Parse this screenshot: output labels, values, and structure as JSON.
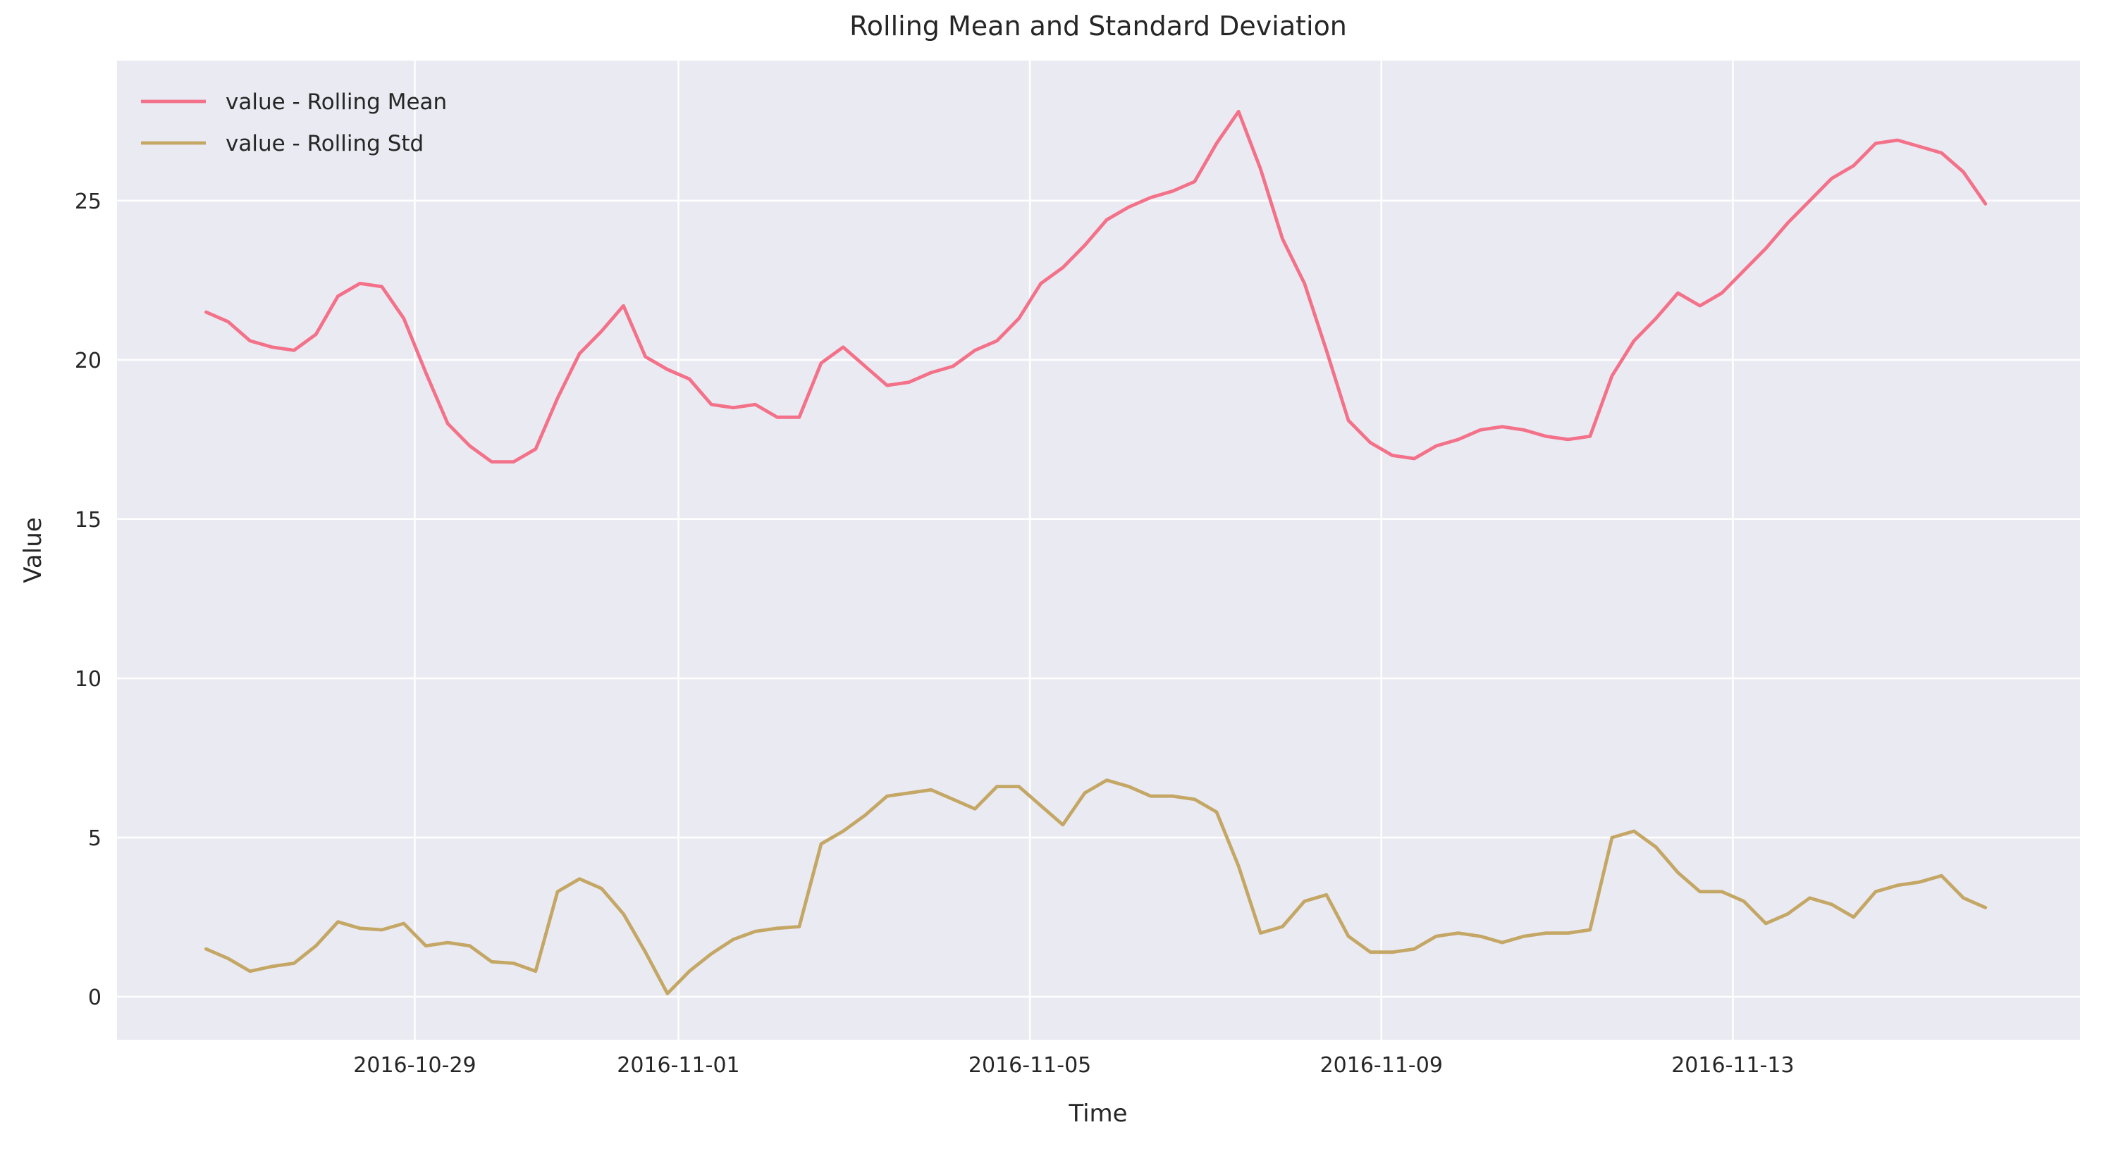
{
  "chart_data": {
    "type": "line",
    "title": "Rolling Mean and Standard Deviation",
    "x_label": "Time",
    "y_label": "Value",
    "x": [
      "2016-10-26 15:00",
      "2016-10-26 21:00",
      "2016-10-27 03:00",
      "2016-10-27 09:00",
      "2016-10-27 15:00",
      "2016-10-27 21:00",
      "2016-10-28 03:00",
      "2016-10-28 09:00",
      "2016-10-28 15:00",
      "2016-10-28 21:00",
      "2016-10-29 03:00",
      "2016-10-29 09:00",
      "2016-10-29 15:00",
      "2016-10-29 21:00",
      "2016-10-30 03:00",
      "2016-10-30 09:00",
      "2016-10-30 15:00",
      "2016-10-30 21:00",
      "2016-10-31 03:00",
      "2016-10-31 09:00",
      "2016-10-31 15:00",
      "2016-10-31 21:00",
      "2016-11-01 03:00",
      "2016-11-01 09:00",
      "2016-11-01 15:00",
      "2016-11-01 21:00",
      "2016-11-02 03:00",
      "2016-11-02 09:00",
      "2016-11-02 15:00",
      "2016-11-02 21:00",
      "2016-11-03 03:00",
      "2016-11-03 09:00",
      "2016-11-03 15:00",
      "2016-11-03 21:00",
      "2016-11-04 03:00",
      "2016-11-04 09:00",
      "2016-11-04 15:00",
      "2016-11-04 21:00",
      "2016-11-05 03:00",
      "2016-11-05 09:00",
      "2016-11-05 15:00",
      "2016-11-05 21:00",
      "2016-11-06 03:00",
      "2016-11-06 09:00",
      "2016-11-06 15:00",
      "2016-11-06 21:00",
      "2016-11-07 03:00",
      "2016-11-07 09:00",
      "2016-11-07 15:00",
      "2016-11-07 21:00",
      "2016-11-08 03:00",
      "2016-11-08 09:00",
      "2016-11-08 15:00",
      "2016-11-08 21:00",
      "2016-11-09 03:00",
      "2016-11-09 09:00",
      "2016-11-09 15:00",
      "2016-11-09 21:00",
      "2016-11-10 03:00",
      "2016-11-10 09:00",
      "2016-11-10 15:00",
      "2016-11-10 21:00",
      "2016-11-11 03:00",
      "2016-11-11 09:00",
      "2016-11-11 15:00",
      "2016-11-11 21:00",
      "2016-11-12 03:00",
      "2016-11-12 09:00",
      "2016-11-12 15:00",
      "2016-11-12 21:00",
      "2016-11-13 03:00",
      "2016-11-13 09:00",
      "2016-11-13 15:00",
      "2016-11-13 21:00",
      "2016-11-14 03:00",
      "2016-11-14 09:00",
      "2016-11-14 15:00",
      "2016-11-14 21:00",
      "2016-11-15 03:00",
      "2016-11-15 09:00",
      "2016-11-15 15:00",
      "2016-11-15 21:00"
    ],
    "series": [
      {
        "name": "value - Rolling Mean",
        "color": "#f37189",
        "values": [
          21.5,
          21.2,
          20.6,
          20.4,
          20.3,
          20.8,
          22.0,
          22.4,
          22.3,
          21.3,
          19.6,
          18.0,
          17.3,
          16.8,
          16.8,
          17.2,
          18.8,
          20.2,
          20.9,
          21.7,
          20.1,
          19.7,
          19.4,
          18.6,
          18.5,
          18.6,
          18.2,
          18.2,
          19.9,
          20.4,
          19.8,
          19.2,
          19.3,
          19.6,
          19.8,
          20.3,
          20.6,
          21.3,
          22.4,
          22.9,
          23.6,
          24.4,
          24.8,
          25.1,
          25.3,
          25.6,
          26.8,
          27.8,
          26.0,
          23.8,
          22.4,
          20.3,
          18.1,
          17.4,
          17.0,
          16.9,
          17.3,
          17.5,
          17.8,
          17.9,
          17.8,
          17.6,
          17.5,
          17.6,
          19.5,
          20.6,
          21.3,
          22.1,
          21.7,
          22.1,
          22.8,
          23.5,
          24.3,
          25.0,
          25.7,
          26.1,
          26.8,
          26.9,
          26.7,
          26.5,
          25.9,
          24.9
        ]
      },
      {
        "name": "value - Rolling Std",
        "color": "#c4a765",
        "values": [
          1.5,
          1.2,
          0.8,
          0.95,
          1.05,
          1.6,
          2.35,
          2.15,
          2.1,
          2.3,
          1.6,
          1.7,
          1.6,
          1.1,
          1.05,
          0.8,
          3.3,
          3.7,
          3.4,
          2.6,
          1.4,
          0.1,
          0.8,
          1.35,
          1.8,
          2.05,
          2.15,
          2.2,
          4.8,
          5.2,
          5.7,
          6.3,
          6.4,
          6.5,
          6.2,
          5.9,
          6.6,
          6.6,
          6.0,
          5.4,
          6.4,
          6.8,
          6.6,
          6.3,
          6.3,
          6.2,
          5.8,
          4.1,
          2.0,
          2.2,
          3.0,
          3.2,
          1.9,
          1.4,
          1.4,
          1.5,
          1.9,
          2.0,
          1.9,
          1.7,
          1.9,
          2.0,
          2.0,
          2.1,
          5.0,
          5.2,
          4.7,
          3.9,
          3.3,
          3.3,
          3.0,
          2.3,
          2.6,
          3.1,
          2.9,
          2.5,
          3.3,
          3.5,
          3.6,
          3.8,
          3.1,
          2.8
        ]
      }
    ],
    "xlim": [
      "2016-10-25 14:40",
      "2016-11-16 22:50"
    ],
    "xticks": [
      "2016-10-29",
      "2016-11-01",
      "2016-11-05",
      "2016-11-09",
      "2016-11-13"
    ],
    "ylim": [
      -1.35,
      29.4
    ],
    "yticks": [
      0,
      5,
      10,
      15,
      20,
      25
    ],
    "grid": true,
    "legend": "upper-left"
  }
}
